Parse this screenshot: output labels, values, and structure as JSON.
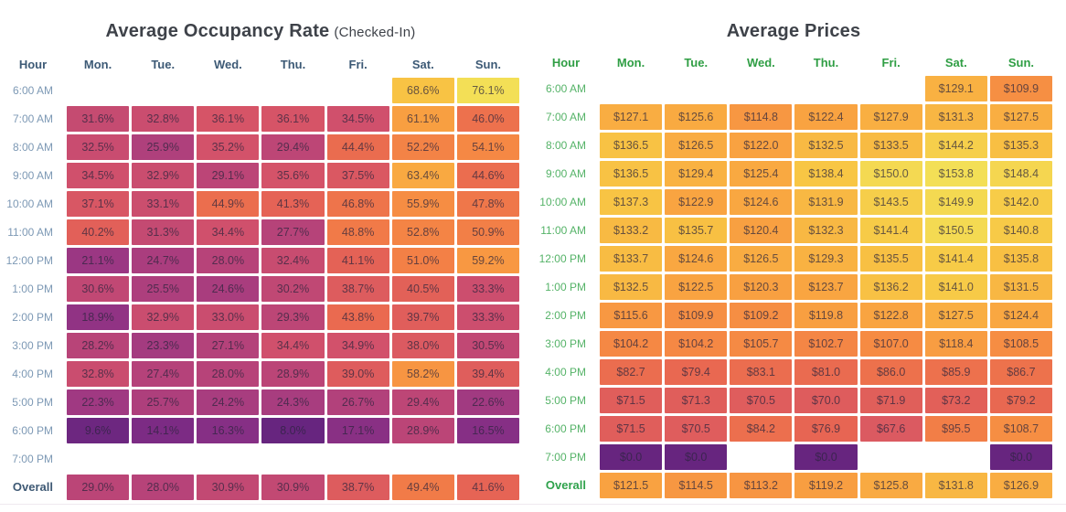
{
  "chart_data": [
    {
      "type": "heatmap",
      "title": "Average Occupancy Rate",
      "title_suffix": "(Checked-In)",
      "value_format": "percent",
      "hour_column_header": "Hour",
      "columns": [
        "Mon.",
        "Tue.",
        "Wed.",
        "Thu.",
        "Fri.",
        "Sat.",
        "Sun."
      ],
      "rows": [
        {
          "label": "6:00 AM",
          "values": [
            null,
            null,
            null,
            null,
            null,
            68.6,
            76.1
          ]
        },
        {
          "label": "7:00 AM",
          "values": [
            31.6,
            32.8,
            36.1,
            36.1,
            34.5,
            61.1,
            46.0
          ]
        },
        {
          "label": "8:00 AM",
          "values": [
            32.5,
            25.9,
            35.2,
            29.4,
            44.4,
            52.2,
            54.1
          ]
        },
        {
          "label": "9:00 AM",
          "values": [
            34.5,
            32.9,
            29.1,
            35.6,
            37.5,
            63.4,
            44.6
          ]
        },
        {
          "label": "10:00 AM",
          "values": [
            37.1,
            33.1,
            44.9,
            41.3,
            46.8,
            55.9,
            47.8
          ]
        },
        {
          "label": "11:00 AM",
          "values": [
            40.2,
            31.3,
            34.4,
            27.7,
            48.8,
            52.8,
            50.9
          ]
        },
        {
          "label": "12:00 PM",
          "values": [
            21.1,
            24.7,
            28.0,
            32.4,
            41.1,
            51.0,
            59.2
          ]
        },
        {
          "label": "1:00 PM",
          "values": [
            30.6,
            25.5,
            24.6,
            30.2,
            38.7,
            40.5,
            33.3
          ]
        },
        {
          "label": "2:00 PM",
          "values": [
            18.9,
            32.9,
            33.0,
            29.3,
            43.8,
            39.7,
            33.3
          ]
        },
        {
          "label": "3:00 PM",
          "values": [
            28.2,
            23.3,
            27.1,
            34.4,
            34.9,
            38.0,
            30.5
          ]
        },
        {
          "label": "4:00 PM",
          "values": [
            32.8,
            27.4,
            28.0,
            28.9,
            39.0,
            58.2,
            39.4
          ]
        },
        {
          "label": "5:00 PM",
          "values": [
            22.3,
            25.7,
            24.2,
            24.3,
            26.7,
            29.4,
            22.6
          ]
        },
        {
          "label": "6:00 PM",
          "values": [
            9.6,
            14.1,
            16.3,
            8.0,
            17.1,
            28.9,
            16.5
          ]
        },
        {
          "label": "7:00 PM",
          "values": [
            null,
            null,
            null,
            null,
            null,
            null,
            null
          ]
        }
      ],
      "overall_row": {
        "label": "Overall",
        "values": [
          29.0,
          28.0,
          30.9,
          30.9,
          38.7,
          49.4,
          41.6
        ]
      },
      "header_color": "#3d5a76",
      "row_label_color": "#7d99b5",
      "overall_label_color": "#3e5974"
    },
    {
      "type": "heatmap",
      "title": "Average Prices",
      "title_suffix": "",
      "value_format": "currency",
      "hour_column_header": "Hour",
      "columns": [
        "Mon.",
        "Tue.",
        "Wed.",
        "Thu.",
        "Fri.",
        "Sat.",
        "Sun."
      ],
      "rows": [
        {
          "label": "6:00 AM",
          "values": [
            null,
            null,
            null,
            null,
            null,
            129.1,
            109.9
          ]
        },
        {
          "label": "7:00 AM",
          "values": [
            127.1,
            125.6,
            114.8,
            122.4,
            127.9,
            131.3,
            127.5
          ]
        },
        {
          "label": "8:00 AM",
          "values": [
            136.5,
            126.5,
            122.0,
            132.5,
            133.5,
            144.2,
            135.3
          ]
        },
        {
          "label": "9:00 AM",
          "values": [
            136.5,
            129.4,
            125.4,
            138.4,
            150.0,
            153.8,
            148.4
          ]
        },
        {
          "label": "10:00 AM",
          "values": [
            137.3,
            122.9,
            124.6,
            131.9,
            143.5,
            149.9,
            142.0
          ]
        },
        {
          "label": "11:00 AM",
          "values": [
            133.2,
            135.7,
            120.4,
            132.3,
            141.4,
            150.5,
            140.8
          ]
        },
        {
          "label": "12:00 PM",
          "values": [
            133.7,
            124.6,
            126.5,
            129.3,
            135.5,
            141.4,
            135.8
          ]
        },
        {
          "label": "1:00 PM",
          "values": [
            132.5,
            122.5,
            120.3,
            123.7,
            136.2,
            141.0,
            131.5
          ]
        },
        {
          "label": "2:00 PM",
          "values": [
            115.6,
            109.9,
            109.2,
            119.8,
            122.8,
            127.5,
            124.4
          ]
        },
        {
          "label": "3:00 PM",
          "values": [
            104.2,
            104.2,
            105.7,
            102.7,
            107.0,
            118.4,
            108.5
          ]
        },
        {
          "label": "4:00 PM",
          "values": [
            82.7,
            79.4,
            83.1,
            81.0,
            86.0,
            85.9,
            86.7
          ]
        },
        {
          "label": "5:00 PM",
          "values": [
            71.5,
            71.3,
            70.5,
            70.0,
            71.9,
            73.2,
            79.2
          ]
        },
        {
          "label": "6:00 PM",
          "values": [
            71.5,
            70.5,
            84.2,
            76.9,
            67.6,
            95.5,
            108.7
          ]
        },
        {
          "label": "7:00 PM",
          "values": [
            0.0,
            0.0,
            null,
            0.0,
            null,
            null,
            0.0
          ]
        }
      ],
      "overall_row": {
        "label": "Overall",
        "values": [
          121.5,
          114.5,
          113.2,
          119.2,
          125.8,
          131.8,
          126.9
        ]
      },
      "header_color": "#2f9e44",
      "row_label_color": "#55b368",
      "overall_label_color": "#2fa24c"
    }
  ],
  "style": {
    "heat_gradient_low_to_high": [
      "#f3df56",
      "#f8c644",
      "#f9a441",
      "#f68c43",
      "#f17a48",
      "#e76553",
      "#d3526a",
      "#b94478",
      "#9d3883",
      "#7f2c85",
      "#67257f"
    ],
    "cell_text_color": "rgba(42,36,60,0.70)",
    "title_color": "#3e4249",
    "divider_color": "#efe9ef",
    "background_color": "#ffffff"
  }
}
